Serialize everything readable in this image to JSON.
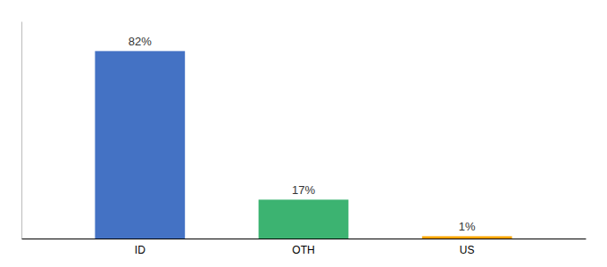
{
  "chart_data": {
    "type": "bar",
    "categories": [
      "ID",
      "OTH",
      "US"
    ],
    "values": [
      82,
      17,
      1
    ],
    "value_labels": [
      "82%",
      "17%",
      "1%"
    ],
    "colors": [
      "#4472C4",
      "#3CB371",
      "#FFA500"
    ],
    "ylim": [
      0,
      95
    ],
    "grid": false,
    "data_labels": true,
    "tick_labels": "x"
  }
}
